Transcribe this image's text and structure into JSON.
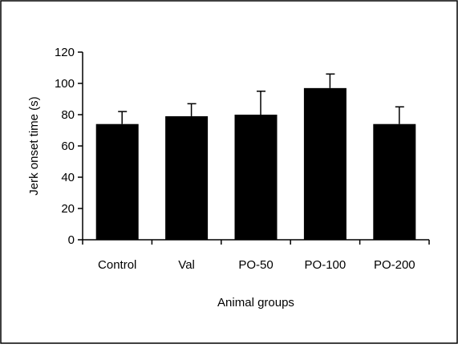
{
  "chart_data": {
    "type": "bar",
    "title": "",
    "xlabel": "Animal groups",
    "ylabel": "Jerk onset time (s)",
    "categories": [
      "Control",
      "Val",
      "PO-50",
      "PO-100",
      "PO-200"
    ],
    "values": [
      74,
      79,
      80,
      97,
      74
    ],
    "error": [
      8,
      8,
      15,
      9,
      11
    ],
    "ylim": [
      0,
      120
    ],
    "yticks": [
      "0",
      "20",
      "40",
      "60",
      "80",
      "100",
      "120"
    ],
    "grid": false,
    "bar_color": "#000000"
  }
}
